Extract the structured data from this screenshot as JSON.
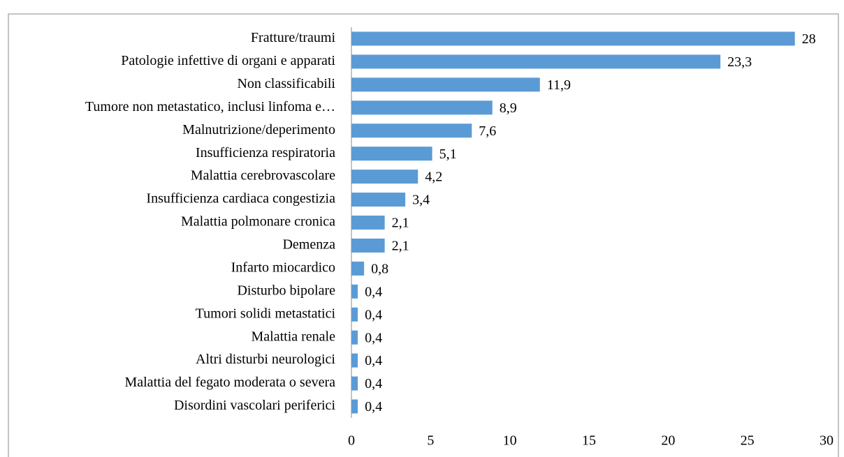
{
  "chart_data": {
    "type": "bar",
    "orientation": "horizontal",
    "categories": [
      "Fratture/traumi",
      "Patologie infettive di organi e apparati",
      "Non classificabili",
      "Tumore non metastatico, inclusi linfoma e…",
      "Malnutrizione/deperimento",
      "Insufficienza respiratoria",
      "Malattia cerebrovascolare",
      "Insufficienza cardiaca congestizia",
      "Malattia polmonare cronica",
      "Demenza",
      "Infarto miocardico",
      "Disturbo bipolare",
      "Tumori solidi metastatici",
      "Malattia renale",
      "Altri disturbi neurologici",
      "Malattia del fegato moderata o severa",
      "Disordini vascolari periferici"
    ],
    "values": [
      28,
      23.3,
      11.9,
      8.9,
      7.6,
      5.1,
      4.2,
      3.4,
      2.1,
      2.1,
      0.8,
      0.4,
      0.4,
      0.4,
      0.4,
      0.4,
      0.4
    ],
    "value_labels": [
      "28",
      "23,3",
      "11,9",
      "8,9",
      "7,6",
      "5,1",
      "4,2",
      "3,4",
      "2,1",
      "2,1",
      "0,8",
      "0,4",
      "0,4",
      "0,4",
      "0,4",
      "0,4",
      "0,4"
    ],
    "color": "#5b9bd5",
    "xlim": [
      0,
      30
    ],
    "xticks": [
      0,
      5,
      10,
      15,
      20,
      25,
      30
    ],
    "grid": false
  }
}
